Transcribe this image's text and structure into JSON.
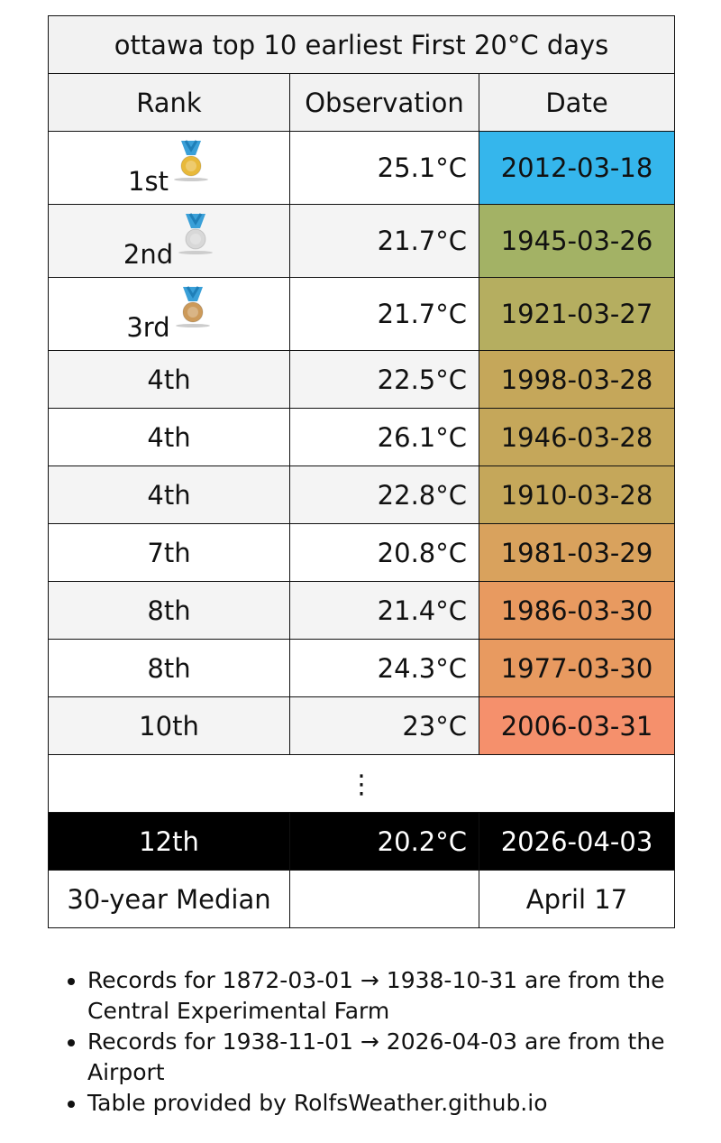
{
  "title": "ottawa top 10 earliest First 20°C days",
  "headers": [
    "Rank",
    "Observation",
    "Date"
  ],
  "rows": [
    {
      "rank": "1st",
      "observation": "25.1°C",
      "date": "2012-03-18",
      "color": "#35b6ec"
    },
    {
      "rank": "2nd",
      "observation": "21.7°C",
      "date": "1945-03-26",
      "color": "#a3b265"
    },
    {
      "rank": "3rd",
      "observation": "21.7°C",
      "date": "1921-03-27",
      "color": "#b5ae60"
    },
    {
      "rank": "4th",
      "observation": "22.5°C",
      "date": "1998-03-28",
      "color": "#c5a75a"
    },
    {
      "rank": "4th",
      "observation": "26.1°C",
      "date": "1946-03-28",
      "color": "#c5a75a"
    },
    {
      "rank": "4th",
      "observation": "22.8°C",
      "date": "1910-03-28",
      "color": "#c5a75a"
    },
    {
      "rank": "7th",
      "observation": "20.8°C",
      "date": "1981-03-29",
      "color": "#d9a25d"
    },
    {
      "rank": "8th",
      "observation": "21.4°C",
      "date": "1986-03-30",
      "color": "#e89a60"
    },
    {
      "rank": "8th",
      "observation": "24.3°C",
      "date": "1977-03-30",
      "color": "#e89a60"
    },
    {
      "rank": "10th",
      "observation": "23°C",
      "date": "2006-03-31",
      "color": "#f5906c"
    }
  ],
  "ellipsis": "⋮",
  "current": {
    "rank": "12th",
    "observation": "20.2°C",
    "date": "2026-04-03"
  },
  "median": {
    "label": "30-year Median",
    "date": "April 17"
  },
  "notes": [
    "Records for 1872-03-01 → 1938-10-31 are from the Central Experimental Farm",
    "Records for 1938-11-01 → 2026-04-03 are from the Airport",
    "Table provided by RolfsWeather.github.io"
  ]
}
